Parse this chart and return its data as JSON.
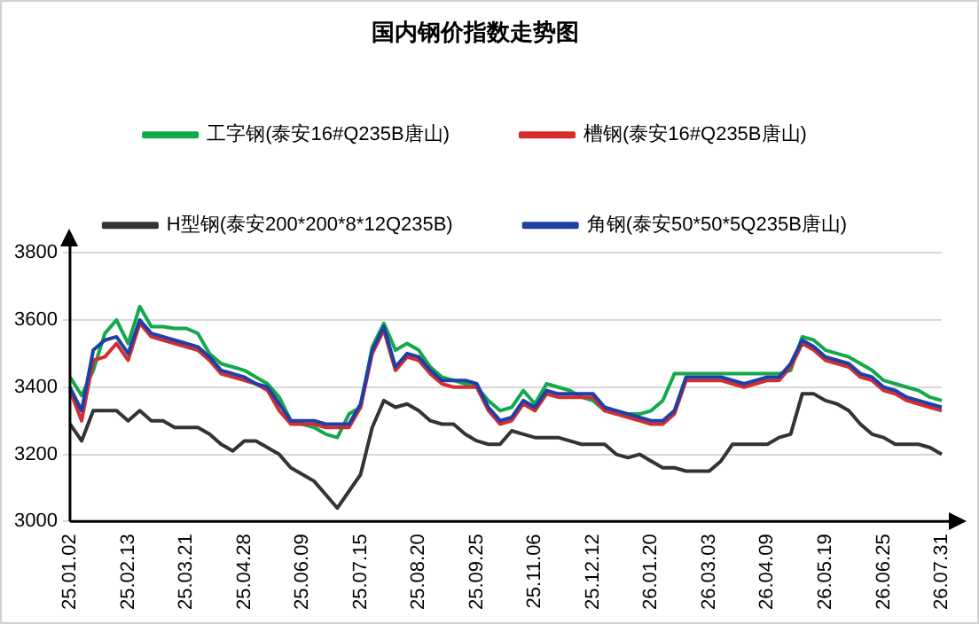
{
  "chart_data": {
    "type": "line",
    "title": "国内钢价指数走势图",
    "categories": [
      "25.01.02",
      null,
      null,
      null,
      null,
      "25.02.13",
      null,
      null,
      null,
      null,
      "25.03.21",
      null,
      null,
      null,
      null,
      "25.04.28",
      null,
      null,
      null,
      null,
      "25.06.09",
      null,
      null,
      null,
      null,
      "25.07.15",
      null,
      null,
      null,
      null,
      "25.08.20",
      null,
      null,
      null,
      null,
      "25.09.25",
      null,
      null,
      null,
      null,
      "25.11.06",
      null,
      null,
      null,
      null,
      "25.12.12",
      null,
      null,
      null,
      null,
      "26.01.20",
      null,
      null,
      null,
      null,
      "26.03.03",
      null,
      null,
      null,
      null,
      "26.04.09",
      null,
      null,
      null,
      null,
      "26.05.19",
      null,
      null,
      null,
      null,
      "26.06.25",
      null,
      null,
      null,
      null,
      "26.07.31"
    ],
    "series": [
      {
        "name": "H型钢(泰安200*200*8*12Q235B)",
        "color": "#333333",
        "values": [
          3290,
          3240,
          3330,
          3330,
          3330,
          3300,
          3330,
          3300,
          3300,
          3280,
          3280,
          3280,
          3260,
          3230,
          3210,
          3240,
          3240,
          3220,
          3200,
          3160,
          3140,
          3120,
          3080,
          3040,
          3090,
          3140,
          3280,
          3360,
          3340,
          3350,
          3330,
          3300,
          3290,
          3290,
          3260,
          3240,
          3230,
          3230,
          3270,
          3260,
          3250,
          3250,
          3250,
          3240,
          3230,
          3230,
          3230,
          3200,
          3190,
          3200,
          3180,
          3160,
          3160,
          3150,
          3150,
          3150,
          3180,
          3230,
          3230,
          3230,
          3230,
          3250,
          3260,
          3380,
          3380,
          3360,
          3350,
          3330,
          3290,
          3260,
          3250,
          3230,
          3230,
          3230,
          3220,
          3200
        ]
      },
      {
        "name": "角钢(泰安50*50*5Q235B唐山)",
        "color": "#1f3fa8",
        "values": [
          3400,
          3330,
          3510,
          3540,
          3550,
          3500,
          3600,
          3560,
          3550,
          3540,
          3530,
          3520,
          3490,
          3450,
          3440,
          3430,
          3410,
          3400,
          3350,
          3300,
          3300,
          3300,
          3290,
          3290,
          3290,
          3350,
          3510,
          3580,
          3460,
          3500,
          3490,
          3450,
          3420,
          3420,
          3420,
          3410,
          3340,
          3300,
          3310,
          3360,
          3340,
          3390,
          3380,
          3380,
          3380,
          3380,
          3340,
          3330,
          3320,
          3310,
          3300,
          3300,
          3330,
          3430,
          3430,
          3430,
          3430,
          3420,
          3410,
          3420,
          3430,
          3430,
          3470,
          3540,
          3520,
          3490,
          3480,
          3470,
          3440,
          3430,
          3400,
          3390,
          3370,
          3360,
          3350,
          3340
        ]
      },
      {
        "name": "槽钢(泰安16#Q235B唐山)",
        "color": "#d62c2c",
        "values": [
          3390,
          3300,
          3480,
          3490,
          3530,
          3480,
          3590,
          3550,
          3540,
          3530,
          3520,
          3510,
          3480,
          3440,
          3430,
          3420,
          3410,
          3390,
          3330,
          3290,
          3290,
          3290,
          3280,
          3280,
          3280,
          3340,
          3500,
          3570,
          3450,
          3490,
          3480,
          3440,
          3410,
          3400,
          3400,
          3400,
          3330,
          3290,
          3300,
          3350,
          3330,
          3380,
          3370,
          3370,
          3370,
          3370,
          3330,
          3320,
          3310,
          3300,
          3290,
          3290,
          3320,
          3420,
          3420,
          3420,
          3420,
          3410,
          3400,
          3410,
          3420,
          3420,
          3460,
          3530,
          3510,
          3480,
          3470,
          3460,
          3430,
          3420,
          3390,
          3380,
          3360,
          3350,
          3340,
          3330
        ]
      },
      {
        "name": "工字钢(泰安16#Q235B唐山)",
        "color": "#14a84b",
        "values": [
          3430,
          3375,
          3450,
          3560,
          3600,
          3530,
          3640,
          3580,
          3580,
          3575,
          3575,
          3560,
          3500,
          3470,
          3460,
          3450,
          3430,
          3410,
          3370,
          3300,
          3290,
          3280,
          3260,
          3250,
          3320,
          3340,
          3520,
          3590,
          3510,
          3530,
          3510,
          3460,
          3430,
          3420,
          3410,
          3400,
          3360,
          3330,
          3340,
          3390,
          3350,
          3410,
          3400,
          3390,
          3370,
          3360,
          3330,
          3330,
          3320,
          3320,
          3330,
          3360,
          3440,
          3440,
          3440,
          3440,
          3440,
          3440,
          3440,
          3440,
          3440,
          3440,
          3450,
          3550,
          3540,
          3510,
          3500,
          3490,
          3470,
          3450,
          3420,
          3410,
          3400,
          3390,
          3370,
          3360
        ]
      }
    ],
    "ylim": [
      3000,
      3800
    ],
    "yticks": [
      3000,
      3200,
      3400,
      3600,
      3800
    ],
    "grid": "y",
    "legend": "top",
    "marker": "none",
    "line_style": "solid"
  }
}
